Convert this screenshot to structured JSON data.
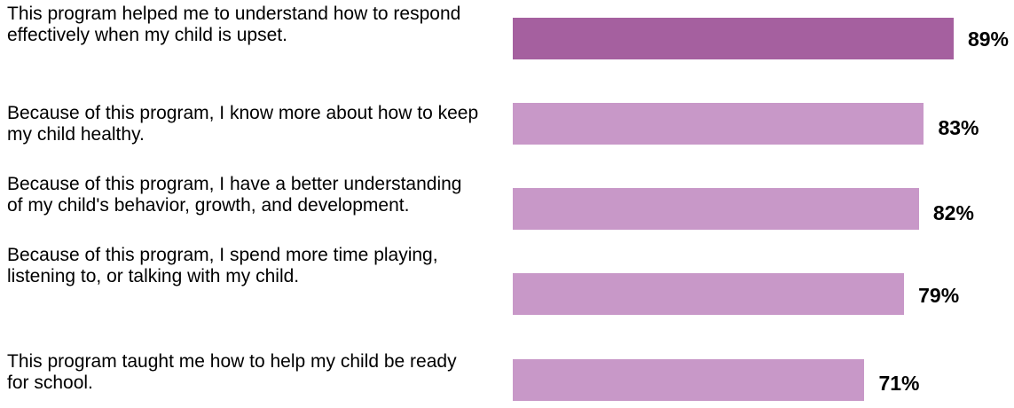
{
  "chart_data": {
    "type": "bar",
    "orientation": "horizontal",
    "categories": [
      "This program helped me to understand how to respond effectively when my child is upset.",
      "Because of this program, I know more about how to keep my child healthy.",
      "Because of this program, I have a better understanding of my child's behavior, growth, and development.",
      "Because of this program, I spend more time playing, listening to, or talking with my child.",
      "This program taught me how to help my child be ready for school."
    ],
    "values": [
      89,
      83,
      82,
      79,
      71
    ],
    "value_labels": [
      "89%",
      "83%",
      "82%",
      "79%",
      "71%"
    ],
    "xlim": [
      0,
      100
    ],
    "grid": false,
    "legend": "none",
    "colors": {
      "highlight": "#a5609f",
      "default": "#c898c8"
    }
  }
}
